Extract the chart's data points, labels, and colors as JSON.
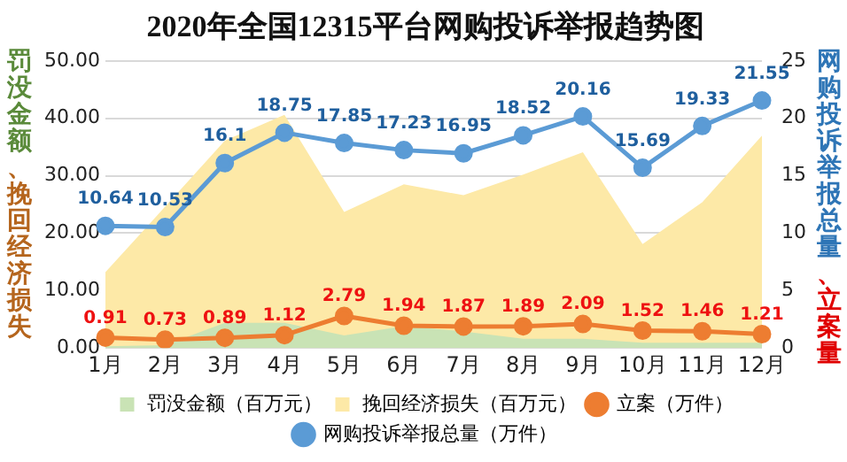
{
  "chart_data": {
    "type": "line",
    "title": "2020年全国12315平台网购投诉举报趋势图",
    "ylabel": "罚没金额、挽回经济损失",
    "y2label": "网购投诉举报总量、立案量",
    "categories": [
      "1月",
      "2月",
      "3月",
      "4月",
      "5月",
      "6月",
      "7月",
      "8月",
      "9月",
      "10月",
      "11月",
      "12月"
    ],
    "series": [
      {
        "name": "罚没金额（百万元）",
        "type": "area",
        "color": "#c9e3b5",
        "values": [
          0.3,
          0.5,
          4.4,
          4.4,
          2.2,
          3.8,
          2.9,
          1.6,
          1.6,
          0.9,
          0.9,
          0.9
        ]
      },
      {
        "name": "挽回经济损失（百万元）",
        "type": "area",
        "color": "#fde9a7",
        "values": [
          13.2,
          24.6,
          36.1,
          40.6,
          23.7,
          28.5,
          26.6,
          30.2,
          34.1,
          18.1,
          25.4,
          37.0
        ]
      },
      {
        "name": "立案（万件）",
        "type": "line",
        "axis": "y2",
        "marker": "circle",
        "color": "#ed7d31",
        "values": [
          0.91,
          0.73,
          0.89,
          1.12,
          2.79,
          1.94,
          1.87,
          1.89,
          2.09,
          1.52,
          1.46,
          1.21
        ],
        "value_labels": [
          "0.91",
          "0.73",
          "0.89",
          "1.12",
          "2.79",
          "1.94",
          "1.87",
          "1.89",
          "2.09",
          "1.52",
          "1.46",
          "1.21"
        ]
      },
      {
        "name": "网购投诉举报总量（万件）",
        "type": "line",
        "axis": "y2",
        "marker": "circle",
        "color": "#5b9bd5",
        "values": [
          10.64,
          10.53,
          16.1,
          18.75,
          17.85,
          17.23,
          16.95,
          18.52,
          20.16,
          15.69,
          19.33,
          21.55
        ],
        "value_labels": [
          "10.64",
          "10.53",
          "16.1",
          "18.75",
          "17.85",
          "17.23",
          "16.95",
          "18.52",
          "20.16",
          "15.69",
          "19.33",
          "21.55"
        ]
      }
    ],
    "ylim": [
      0,
      50
    ],
    "yticks": [
      {
        "value": 0,
        "label": "0.00"
      },
      {
        "value": 10,
        "label": "10.00"
      },
      {
        "value": 20,
        "label": "20.00"
      },
      {
        "value": 30,
        "label": "30.00"
      },
      {
        "value": 40,
        "label": "40.00"
      },
      {
        "value": 50,
        "label": "50.00"
      }
    ],
    "y2lim": [
      0,
      25
    ],
    "y2ticks": [
      0,
      5,
      10,
      15,
      20,
      25
    ],
    "grid": "y",
    "legend": "bottom",
    "line_style": "solid"
  }
}
